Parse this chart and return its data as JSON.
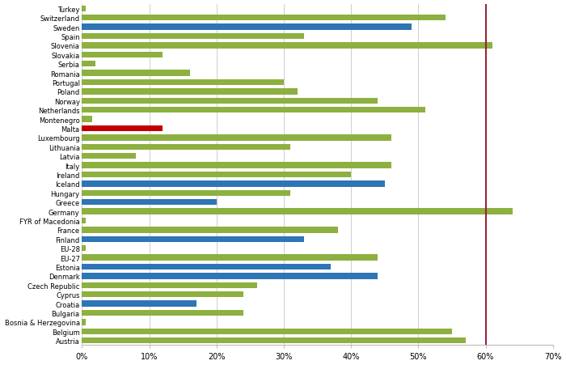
{
  "countries": [
    "Austria",
    "Belgium",
    "Bosnia & Herzegovina",
    "Bulgaria",
    "Croatia",
    "Cyprus",
    "Czech Republic",
    "Denmark",
    "Estonia",
    "EU-27",
    "EU-28",
    "Finland",
    "France",
    "FYR of Macedonia",
    "Germany",
    "Greece",
    "Hungary",
    "Iceland",
    "Ireland",
    "Italy",
    "Latvia",
    "Lithuania",
    "Luxembourg",
    "Malta",
    "Montenegro",
    "Netherlands",
    "Norway",
    "Poland",
    "Portugal",
    "Romania",
    "Serbia",
    "Slovakia",
    "Slovenia",
    "Spain",
    "Sweden",
    "Switzerland",
    "Turkey"
  ],
  "values": [
    57,
    55,
    0.5,
    24,
    17,
    24,
    26,
    44,
    37,
    44,
    0.5,
    33,
    38,
    0.5,
    64,
    20,
    31,
    45,
    40,
    46,
    8,
    31,
    46,
    12,
    1.5,
    51,
    44,
    32,
    30,
    16,
    2,
    12,
    61,
    33,
    49,
    54,
    0.5
  ],
  "colors": [
    "#8db040",
    "#8db040",
    "#8db040",
    "#8db040",
    "#2e75b6",
    "#8db040",
    "#8db040",
    "#2e75b6",
    "#2e75b6",
    "#8db040",
    "#8db040",
    "#2e75b6",
    "#8db040",
    "#8db040",
    "#8db040",
    "#2e75b6",
    "#8db040",
    "#2e75b6",
    "#8db040",
    "#8db040",
    "#8db040",
    "#8db040",
    "#8db040",
    "#c00000",
    "#8db040",
    "#8db040",
    "#8db040",
    "#8db040",
    "#8db040",
    "#8db040",
    "#8db040",
    "#8db040",
    "#8db040",
    "#8db040",
    "#2e75b6",
    "#8db040",
    "#8db040"
  ],
  "target_line": 60,
  "target_line_color": "#9b2335",
  "xlim": [
    0,
    70
  ],
  "xticks": [
    0,
    10,
    20,
    30,
    40,
    50,
    60,
    70
  ],
  "xticklabels": [
    "0%",
    "10%",
    "20%",
    "30%",
    "40%",
    "50%",
    "60%",
    "70%"
  ],
  "bar_height": 0.65,
  "fig_bg": "#ffffff",
  "axes_bg": "#ffffff",
  "grid_color": "#bbbbbb",
  "label_fontsize": 6.0,
  "tick_fontsize": 7.0,
  "figsize": [
    7.0,
    4.52
  ],
  "dpi": 100
}
